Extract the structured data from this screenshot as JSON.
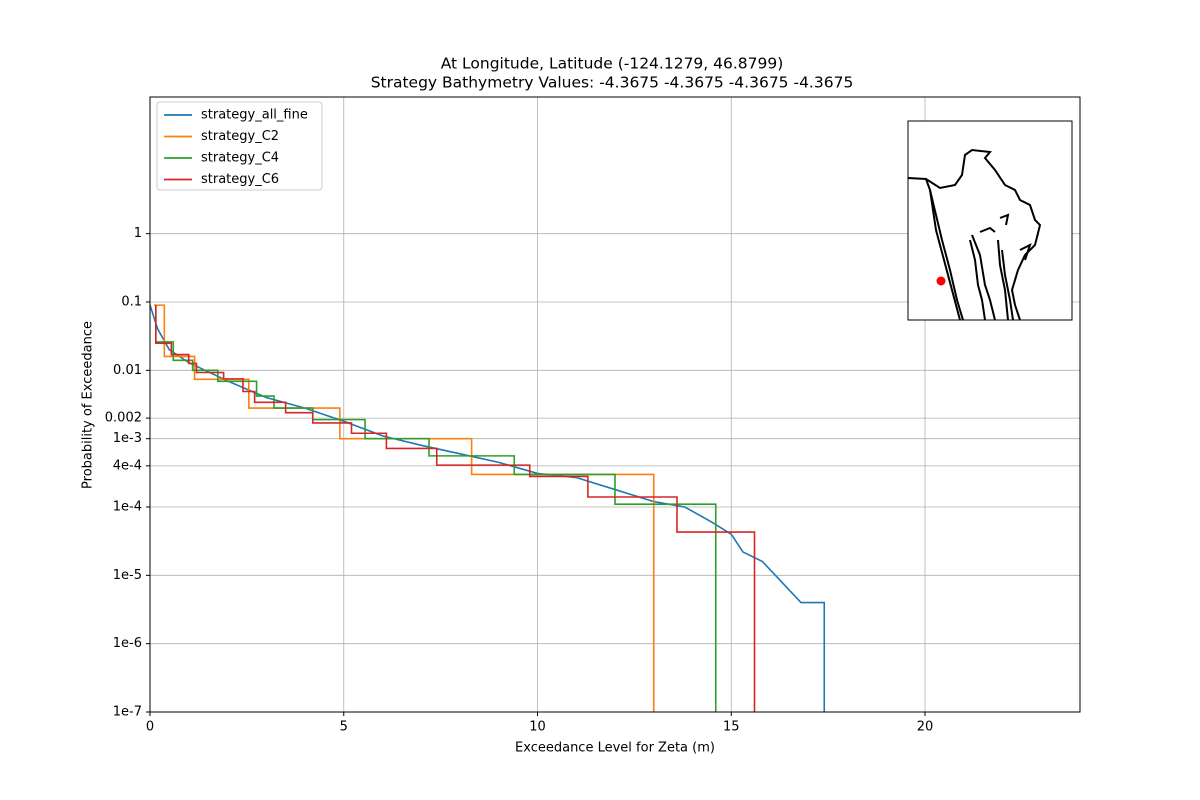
{
  "chart_data": {
    "type": "line",
    "title": "At Longitude, Latitude (-124.1279,  46.8799)",
    "subtitle": "Strategy Bathymetry Values:   -4.3675   -4.3675   -4.3675   -4.3675",
    "xlabel": "Exceedance Level for Zeta (m)",
    "ylabel": "Probability of Exceedance",
    "xlim": [
      0,
      24
    ],
    "xticks": [
      0,
      5,
      10,
      15,
      20
    ],
    "ylim": [
      1e-07,
      100
    ],
    "yscale": "log",
    "yticks": [
      {
        "value": 1e-07,
        "label": "1e-7"
      },
      {
        "value": 1e-06,
        "label": "1e-6"
      },
      {
        "value": 1e-05,
        "label": "1e-5"
      },
      {
        "value": 0.0001,
        "label": "1e-4"
      },
      {
        "value": 0.0004,
        "label": "4e-4"
      },
      {
        "value": 0.001,
        "label": "1e-3"
      },
      0.002,
      0.01,
      0.1,
      1
    ],
    "grid": true,
    "legend": "upper left",
    "series": [
      {
        "name": "strategy_all_fine",
        "color": "#1f77b4",
        "x": [
          0,
          0.2,
          0.5,
          1,
          2,
          3,
          4,
          5,
          6,
          7,
          8,
          9,
          10,
          11,
          12,
          13,
          13.8,
          14.5,
          15,
          15.3,
          15.8,
          16.3,
          16.8,
          17.4,
          17.4
        ],
        "values": [
          0.09,
          0.04,
          0.02,
          0.013,
          0.007,
          0.004,
          0.0028,
          0.0018,
          0.0011,
          0.0008,
          0.0006,
          0.00045,
          0.00031,
          0.00027,
          0.00018,
          0.00012,
          0.0001,
          6e-05,
          4e-05,
          2.2e-05,
          1.6e-05,
          8e-06,
          4e-06,
          4e-06,
          1e-07
        ]
      },
      {
        "name": "strategy_C2",
        "color": "#ff7f0e",
        "x": [
          0.1,
          0.37,
          0.37,
          1.15,
          1.15,
          2.55,
          2.55,
          4.9,
          4.9,
          8.3,
          8.3,
          13.0,
          13.0
        ],
        "values": [
          0.09,
          0.09,
          0.016,
          0.016,
          0.0074,
          0.0074,
          0.0028,
          0.0028,
          0.001,
          0.001,
          0.0003,
          0.0003,
          1e-07
        ]
      },
      {
        "name": "strategy_C4",
        "color": "#2ca02c",
        "x": [
          0.15,
          0.15,
          0.6,
          0.6,
          1.1,
          1.1,
          1.75,
          1.75,
          2.75,
          2.75,
          3.2,
          3.2,
          4.2,
          4.2,
          5.55,
          5.55,
          7.2,
          7.2,
          9.4,
          9.4,
          12.0,
          12.0,
          14.6,
          14.6
        ],
        "values": [
          0.09,
          0.026,
          0.026,
          0.014,
          0.014,
          0.01,
          0.01,
          0.0069,
          0.0069,
          0.0042,
          0.0042,
          0.0028,
          0.0028,
          0.0019,
          0.0019,
          0.001,
          0.001,
          0.00056,
          0.00056,
          0.0003,
          0.0003,
          0.00011,
          0.00011,
          1e-07
        ]
      },
      {
        "name": "strategy_C6",
        "color": "#d62728",
        "x": [
          0.15,
          0.15,
          0.55,
          0.55,
          1.0,
          1.0,
          1.2,
          1.2,
          1.9,
          1.9,
          2.4,
          2.4,
          2.7,
          2.7,
          3.5,
          3.5,
          4.2,
          4.2,
          5.2,
          5.2,
          6.1,
          6.1,
          7.4,
          7.4,
          9.8,
          9.8,
          11.3,
          11.3,
          13.6,
          13.6,
          15.6,
          15.6
        ],
        "values": [
          0.09,
          0.025,
          0.025,
          0.017,
          0.017,
          0.0126,
          0.0126,
          0.0093,
          0.0093,
          0.0075,
          0.0075,
          0.0049,
          0.0049,
          0.0034,
          0.0034,
          0.0024,
          0.0024,
          0.0017,
          0.0017,
          0.0012,
          0.0012,
          0.00072,
          0.00072,
          0.00041,
          0.00041,
          0.00028,
          0.00028,
          0.00014,
          0.00014,
          4.3e-05,
          4.3e-05,
          1e-07
        ]
      }
    ]
  }
}
